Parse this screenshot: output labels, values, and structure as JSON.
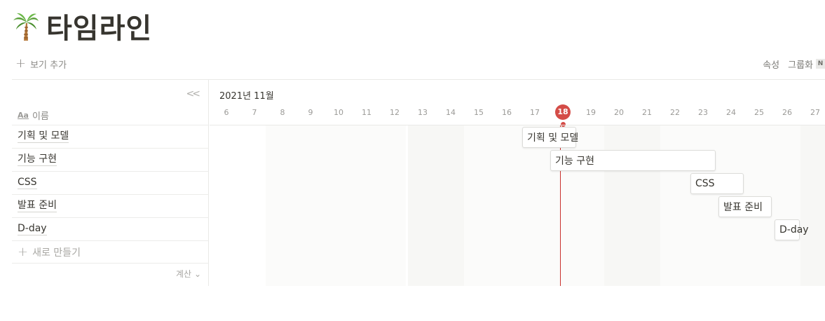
{
  "page": {
    "title": "타임라인",
    "title_icon": "palm-tree-icon"
  },
  "toolbar": {
    "add_view_label": "보기 추가",
    "properties_label": "속성",
    "group_label": "그룹화",
    "badge": "N"
  },
  "left_panel": {
    "name_header": "이름",
    "name_icon_text": "Aa",
    "rows": [
      {
        "label": "기획 및 모델"
      },
      {
        "label": "기능 구현"
      },
      {
        "label": "CSS"
      },
      {
        "label": "발표 준비"
      },
      {
        "label": "D-day"
      }
    ],
    "new_label": "새로 만들기",
    "calc_label": "계산"
  },
  "timeline": {
    "month": "2021년 11월",
    "days": [
      "6",
      "7",
      "8",
      "9",
      "10",
      "11",
      "12",
      "13",
      "14",
      "15",
      "16",
      "17",
      "18",
      "19",
      "20",
      "21",
      "22",
      "23",
      "24",
      "25",
      "26",
      "27"
    ],
    "today": "18",
    "bars": [
      {
        "label": "기획 및 모델"
      },
      {
        "label": "기능 구현"
      },
      {
        "label": "CSS"
      },
      {
        "label": "발표 준비"
      },
      {
        "label": "D-day"
      }
    ]
  },
  "colors": {
    "today": "#d44c47",
    "weekend_shade": "#f7f7f5"
  }
}
